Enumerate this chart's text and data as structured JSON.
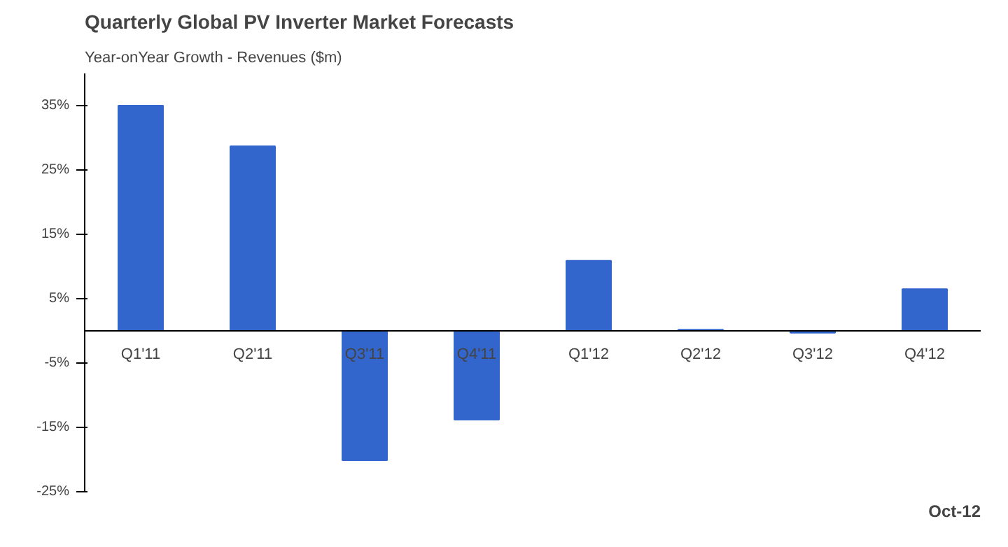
{
  "chart_data": {
    "type": "bar",
    "title": "Quarterly Global PV Inverter Market Forecasts",
    "subtitle": "Year-onYear Growth - Revenues ($m)",
    "categories": [
      "Q1'11",
      "Q2'11",
      "Q3'11",
      "Q4'11",
      "Q1'12",
      "Q2'12",
      "Q3'12",
      "Q4'12"
    ],
    "values": [
      35,
      28.7,
      -20.1,
      -13.8,
      10.9,
      0.2,
      -0.3,
      6.5
    ],
    "color": "#3366cc",
    "ylim": [
      -25,
      40
    ],
    "yticks": [
      {
        "value": -25,
        "label": "-25%"
      },
      {
        "value": -15,
        "label": "-15%"
      },
      {
        "value": -5,
        "label": "-5%"
      },
      {
        "value": 5,
        "label": "5%"
      },
      {
        "value": 15,
        "label": "15%"
      },
      {
        "value": 25,
        "label": "25%"
      },
      {
        "value": 35,
        "label": "35%"
      }
    ],
    "grid": false,
    "annotations": [
      "Oct-12"
    ]
  }
}
